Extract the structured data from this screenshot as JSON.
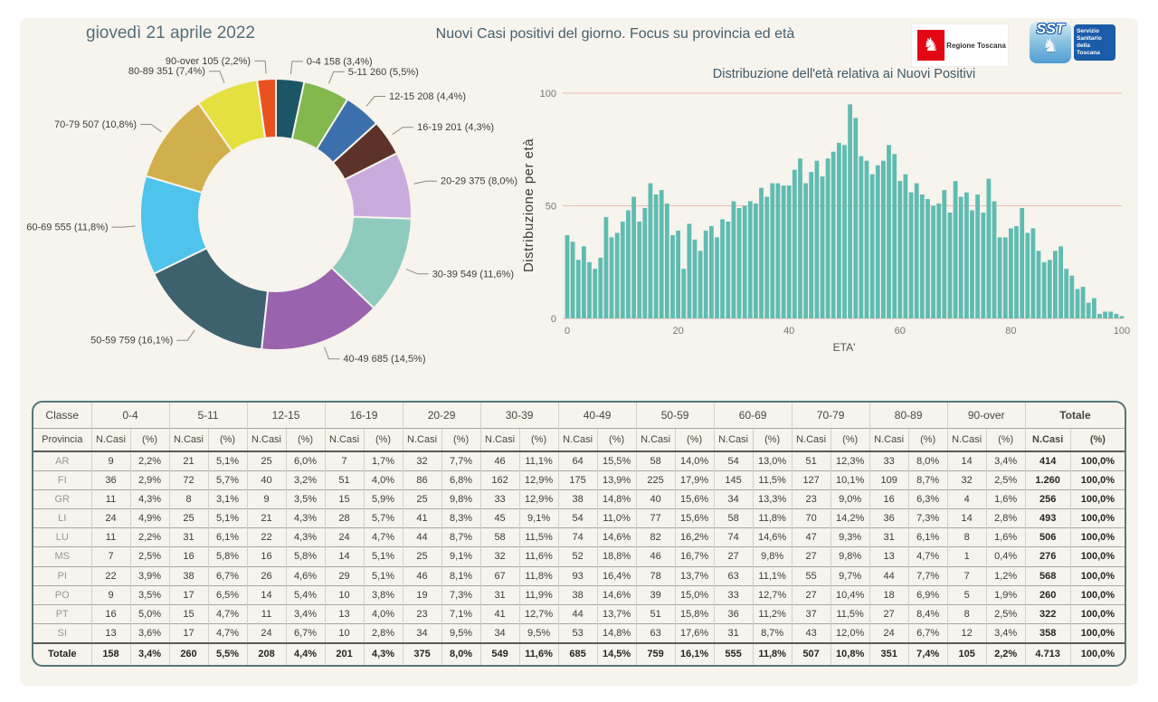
{
  "header": {
    "date": "giovedì 21 aprile 2022",
    "title": "Nuovi Casi positivi del giorno. Focus su provincia ed età",
    "logo_regione_text": "Regione Toscana",
    "logo_sst_acronym": "SST",
    "logo_sst_text": "Servizio Sanitario della Toscana"
  },
  "colors": {
    "page_bg": "#ffffff",
    "canvas_bg": "#f7f3ed",
    "title_text": "#46606c",
    "table_border": "#56777a",
    "regione_red": "#e30613",
    "sst_blue": "#1a5ca8"
  },
  "chart_data": [
    {
      "type": "pie",
      "name": "nuovi-positivi-per-fascia-eta",
      "donut": true,
      "slices": [
        {
          "label": "0-4",
          "value": 158,
          "pct": "3,4%",
          "color": "#1c5666",
          "label_text": "0-4 158 (3,4%)"
        },
        {
          "label": "5-11",
          "value": 260,
          "pct": "5,5%",
          "color": "#82b84e",
          "label_text": "5-11 260 (5,5%)"
        },
        {
          "label": "12-15",
          "value": 208,
          "pct": "4,4%",
          "color": "#3c70ac",
          "label_text": "12-15 208 (4,4%)"
        },
        {
          "label": "16-19",
          "value": 201,
          "pct": "4,3%",
          "color": "#5c322a",
          "label_text": "16-19 201 (4,3%)"
        },
        {
          "label": "20-29",
          "value": 375,
          "pct": "8,0%",
          "color": "#caacdc",
          "label_text": "20-29 375 (8,0%)"
        },
        {
          "label": "30-39",
          "value": 549,
          "pct": "11,6%",
          "color": "#8fcabe",
          "label_text": "30-39 549 (11,6%)"
        },
        {
          "label": "40-49",
          "value": 685,
          "pct": "14,5%",
          "color": "#9a63ae",
          "label_text": "40-49 685 (14,5%)"
        },
        {
          "label": "50-59",
          "value": 759,
          "pct": "16,1%",
          "color": "#3e616e",
          "label_text": "50-59 759 (16,1%)"
        },
        {
          "label": "60-69",
          "value": 555,
          "pct": "11,8%",
          "color": "#4ec4ed",
          "label_text": "60-69 555 (11,8%)"
        },
        {
          "label": "70-79",
          "value": 507,
          "pct": "10,8%",
          "color": "#d1af4c",
          "label_text": "70-79 507 (10,8%)"
        },
        {
          "label": "80-89",
          "value": 351,
          "pct": "7,4%",
          "color": "#e3e040",
          "label_text": "80-89 351 (7,4%)"
        },
        {
          "label": "90-over",
          "value": 105,
          "pct": "2,2%",
          "color": "#e9511f",
          "label_text": "90-over 105 (2,2%)"
        }
      ]
    },
    {
      "type": "bar",
      "name": "distribuzione-eta",
      "title": "Distribuzione dell'età relativa ai Nuovi Positivi",
      "xlabel": "ETA'",
      "ylabel": "Distribuzione per età",
      "ylim": [
        0,
        100
      ],
      "yticks": [
        0,
        50,
        100
      ],
      "xticks": [
        0,
        20,
        40,
        60,
        80,
        100
      ],
      "x_min": 0,
      "x_max": 100,
      "bar_color": "#5fbcb1",
      "grid_color": "#e5bfb0",
      "tick_color": "#787871",
      "values": [
        37,
        34,
        26,
        32,
        25,
        22,
        27,
        45,
        36,
        38,
        43,
        48,
        54,
        43,
        49,
        60,
        55,
        57,
        51,
        37,
        39,
        22,
        42,
        35,
        30,
        39,
        41,
        36,
        44,
        43,
        52,
        49,
        50,
        52,
        51,
        58,
        54,
        60,
        60,
        59,
        59,
        66,
        71,
        60,
        65,
        70,
        63,
        71,
        74,
        78,
        77,
        95,
        89,
        72,
        70,
        64,
        68,
        70,
        77,
        73,
        61,
        64,
        56,
        60,
        55,
        53,
        50,
        51,
        57,
        47,
        61,
        54,
        56,
        48,
        55,
        47,
        62,
        52,
        36,
        36,
        40,
        41,
        49,
        38,
        40,
        30,
        25,
        26,
        30,
        32,
        22,
        19,
        13,
        14,
        7,
        9,
        2,
        3,
        3,
        2,
        1
      ]
    }
  ],
  "table": {
    "corner1": "Classe",
    "corner2": "Provincia",
    "groups": [
      "0-4",
      "5-11",
      "12-15",
      "16-19",
      "20-29",
      "30-39",
      "40-49",
      "50-59",
      "60-69",
      "70-79",
      "80-89",
      "90-over",
      "Totale"
    ],
    "subheaders": [
      "N.Casi",
      "(%)"
    ],
    "rows": [
      {
        "label": "AR",
        "cells": [
          "9",
          "2,2%",
          "21",
          "5,1%",
          "25",
          "6,0%",
          "7",
          "1,7%",
          "32",
          "7,7%",
          "46",
          "11,1%",
          "64",
          "15,5%",
          "58",
          "14,0%",
          "54",
          "13,0%",
          "51",
          "12,3%",
          "33",
          "8,0%",
          "14",
          "3,4%",
          "414",
          "100,0%"
        ]
      },
      {
        "label": "FI",
        "cells": [
          "36",
          "2,9%",
          "72",
          "5,7%",
          "40",
          "3,2%",
          "51",
          "4,0%",
          "86",
          "6,8%",
          "162",
          "12,9%",
          "175",
          "13,9%",
          "225",
          "17,9%",
          "145",
          "11,5%",
          "127",
          "10,1%",
          "109",
          "8,7%",
          "32",
          "2,5%",
          "1.260",
          "100,0%"
        ]
      },
      {
        "label": "GR",
        "cells": [
          "11",
          "4,3%",
          "8",
          "3,1%",
          "9",
          "3,5%",
          "15",
          "5,9%",
          "25",
          "9,8%",
          "33",
          "12,9%",
          "38",
          "14,8%",
          "40",
          "15,6%",
          "34",
          "13,3%",
          "23",
          "9,0%",
          "16",
          "6,3%",
          "4",
          "1,6%",
          "256",
          "100,0%"
        ]
      },
      {
        "label": "LI",
        "cells": [
          "24",
          "4,9%",
          "25",
          "5,1%",
          "21",
          "4,3%",
          "28",
          "5,7%",
          "41",
          "8,3%",
          "45",
          "9,1%",
          "54",
          "11,0%",
          "77",
          "15,6%",
          "58",
          "11,8%",
          "70",
          "14,2%",
          "36",
          "7,3%",
          "14",
          "2,8%",
          "493",
          "100,0%"
        ]
      },
      {
        "label": "LU",
        "cells": [
          "11",
          "2,2%",
          "31",
          "6,1%",
          "22",
          "4,3%",
          "24",
          "4,7%",
          "44",
          "8,7%",
          "58",
          "11,5%",
          "74",
          "14,6%",
          "82",
          "16,2%",
          "74",
          "14,6%",
          "47",
          "9,3%",
          "31",
          "6,1%",
          "8",
          "1,6%",
          "506",
          "100,0%"
        ]
      },
      {
        "label": "MS",
        "cells": [
          "7",
          "2,5%",
          "16",
          "5,8%",
          "16",
          "5,8%",
          "14",
          "5,1%",
          "25",
          "9,1%",
          "32",
          "11,6%",
          "52",
          "18,8%",
          "46",
          "16,7%",
          "27",
          "9,8%",
          "27",
          "9,8%",
          "13",
          "4,7%",
          "1",
          "0,4%",
          "276",
          "100,0%"
        ]
      },
      {
        "label": "PI",
        "cells": [
          "22",
          "3,9%",
          "38",
          "6,7%",
          "26",
          "4,6%",
          "29",
          "5,1%",
          "46",
          "8,1%",
          "67",
          "11,8%",
          "93",
          "16,4%",
          "78",
          "13,7%",
          "63",
          "11,1%",
          "55",
          "9,7%",
          "44",
          "7,7%",
          "7",
          "1,2%",
          "568",
          "100,0%"
        ]
      },
      {
        "label": "PO",
        "cells": [
          "9",
          "3,5%",
          "17",
          "6,5%",
          "14",
          "5,4%",
          "10",
          "3,8%",
          "19",
          "7,3%",
          "31",
          "11,9%",
          "38",
          "14,6%",
          "39",
          "15,0%",
          "33",
          "12,7%",
          "27",
          "10,4%",
          "18",
          "6,9%",
          "5",
          "1,9%",
          "260",
          "100,0%"
        ]
      },
      {
        "label": "PT",
        "cells": [
          "16",
          "5,0%",
          "15",
          "4,7%",
          "11",
          "3,4%",
          "13",
          "4,0%",
          "23",
          "7,1%",
          "41",
          "12,7%",
          "44",
          "13,7%",
          "51",
          "15,8%",
          "36",
          "11,2%",
          "37",
          "11,5%",
          "27",
          "8,4%",
          "8",
          "2,5%",
          "322",
          "100,0%"
        ]
      },
      {
        "label": "SI",
        "cells": [
          "13",
          "3,6%",
          "17",
          "4,7%",
          "24",
          "6,7%",
          "10",
          "2,8%",
          "34",
          "9,5%",
          "34",
          "9,5%",
          "53",
          "14,8%",
          "63",
          "17,6%",
          "31",
          "8,7%",
          "43",
          "12,0%",
          "24",
          "6,7%",
          "12",
          "3,4%",
          "358",
          "100,0%"
        ]
      }
    ],
    "total_row": {
      "label": "Totale",
      "cells": [
        "158",
        "3,4%",
        "260",
        "5,5%",
        "208",
        "4,4%",
        "201",
        "4,3%",
        "375",
        "8,0%",
        "549",
        "11,6%",
        "685",
        "14,5%",
        "759",
        "16,1%",
        "555",
        "11,8%",
        "507",
        "10,8%",
        "351",
        "7,4%",
        "105",
        "2,2%",
        "4.713",
        "100,0%"
      ]
    }
  }
}
